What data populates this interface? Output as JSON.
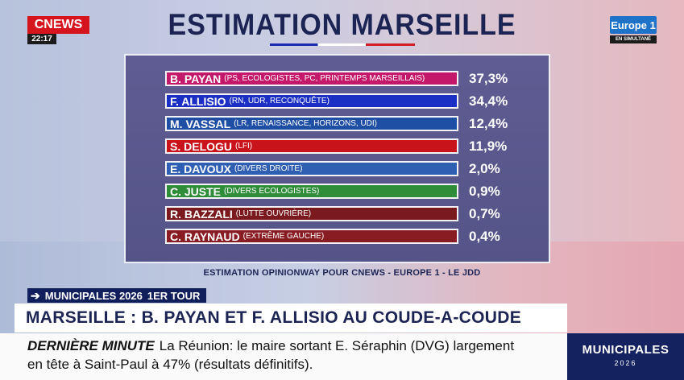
{
  "broadcast": {
    "channel_logo": "CNEWS",
    "clock": "22:17",
    "partner_logo": "Europe 1",
    "partner_sub": "EN SIMULTANÉ"
  },
  "title": "ESTIMATION MARSEILLE",
  "colors": {
    "title_navy": "#1c2454",
    "panel": "#5c5a8e",
    "ticker_box": "#14225f",
    "cnews_red": "#d6141e"
  },
  "candidates": [
    {
      "name": "B. PAYAN",
      "party": "(PS, ECOLOGISTES, PC, PRINTEMPS MARSEILLAIS)",
      "pct": "37,3%",
      "color": "#c4186b"
    },
    {
      "name": "F. ALLISIO",
      "party": "(RN, UDR, RECONQUÊTE)",
      "pct": "34,4%",
      "color": "#1b2fc4"
    },
    {
      "name": "M. VASSAL",
      "party": "(LR, RENAISSANCE, HORIZONS, UDI)",
      "pct": "12,4%",
      "color": "#1f4fa4"
    },
    {
      "name": "S. DELOGU",
      "party": "(LFI)",
      "pct": "11,9%",
      "color": "#c9131b"
    },
    {
      "name": "E. DAVOUX",
      "party": "(DIVERS DROITE)",
      "pct": "2,0%",
      "color": "#2f5fb3"
    },
    {
      "name": "C. JUSTE",
      "party": "(DIVERS ECOLOGISTES)",
      "pct": "0,9%",
      "color": "#2f8d3a"
    },
    {
      "name": "R. BAZZALI",
      "party": "(LUTTE OUVRIÈRE)",
      "pct": "0,7%",
      "color": "#7a1a1e"
    },
    {
      "name": "C. RAYNAUD",
      "party": "(EXTRÊME GAUCHE)",
      "pct": "0,4%",
      "color": "#891c23"
    }
  ],
  "source": "ESTIMATION OPINIONWAY POUR CNEWS - EUROPE 1 - LE JDD",
  "tag": {
    "prefix": "MUNICIPALES 2026",
    "round": "1ER TOUR"
  },
  "headline": "MARSEILLE : B. PAYAN ET F. ALLISIO AU COUDE-A-COUDE",
  "ticker": {
    "label": "DERNIÈRE MINUTE",
    "line1": "La Réunion: le maire sortant E. Séraphin (DVG) largement",
    "line2": "en tête à Saint-Paul à 47% (résultats définitifs)."
  },
  "event_box": {
    "title": "MUNICIPALES",
    "year": "2026"
  }
}
